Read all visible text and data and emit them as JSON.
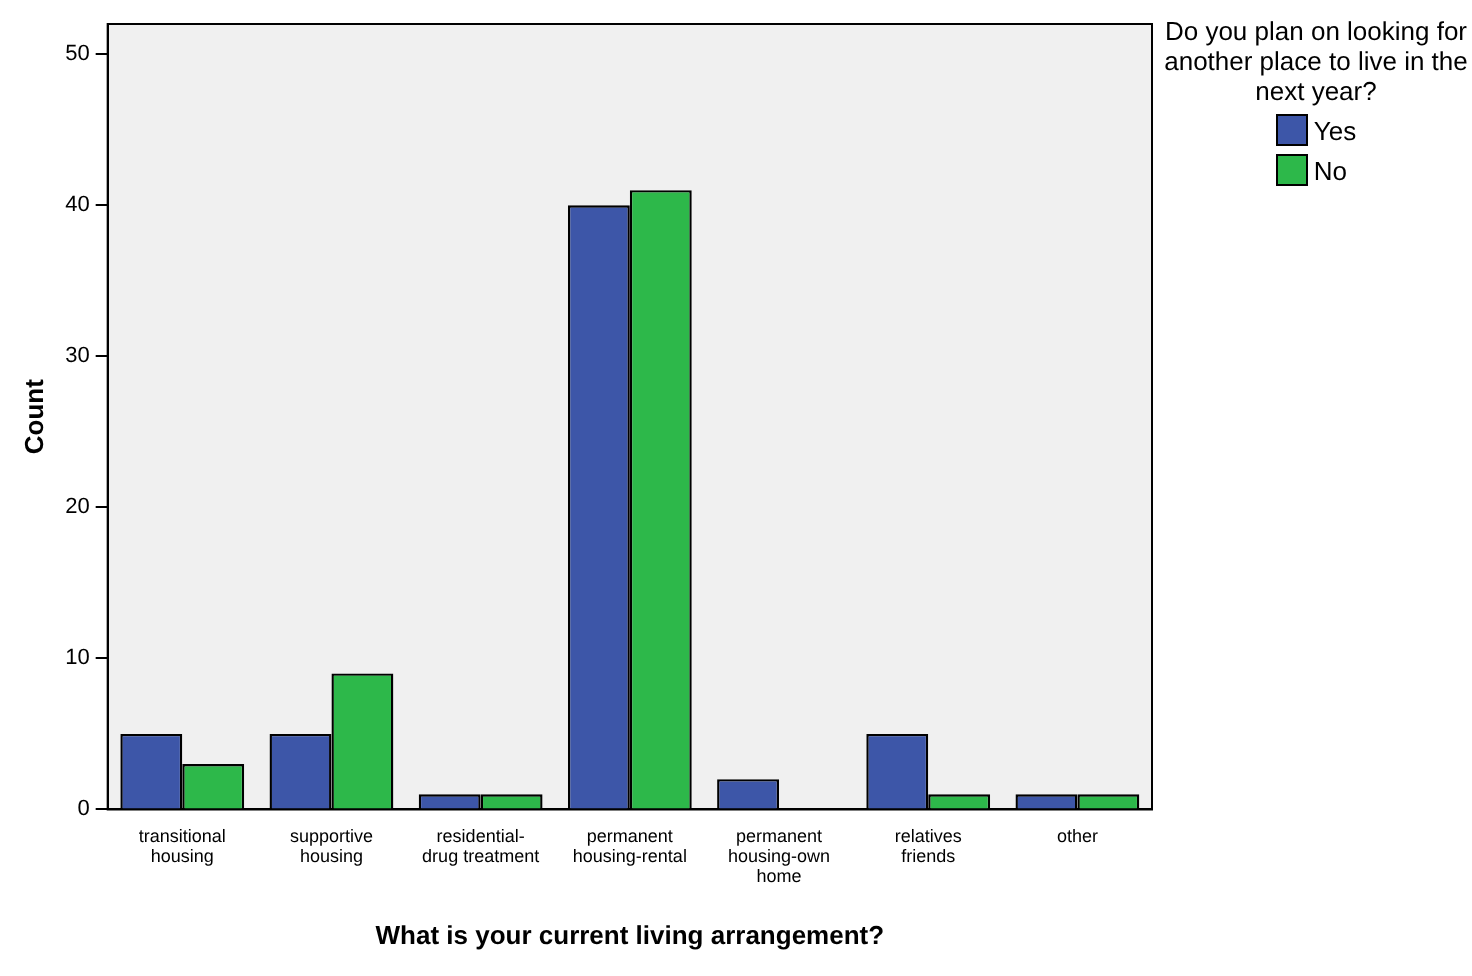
{
  "chart_data": {
    "type": "bar",
    "xlabel": "What is your current living arrangement?",
    "ylabel": "Count",
    "legend_title": "Do you plan on looking for another place to live in the next year?",
    "categories": [
      "transitional housing",
      "supportive housing",
      "residential-drug treatment",
      "permanent housing-rental",
      "permanent housing-own home",
      "relatives friends",
      "other"
    ],
    "series": [
      {
        "name": "Yes",
        "color": "#3d56a8",
        "values": [
          5,
          5,
          1,
          40,
          2,
          5,
          1
        ]
      },
      {
        "name": "No",
        "color": "#2db84a",
        "values": [
          3,
          9,
          1,
          41,
          0,
          1,
          1
        ]
      }
    ],
    "ylim": [
      0,
      52
    ],
    "yticks": [
      0,
      10,
      20,
      30,
      40,
      50
    ],
    "grid": false,
    "legend": "right"
  }
}
